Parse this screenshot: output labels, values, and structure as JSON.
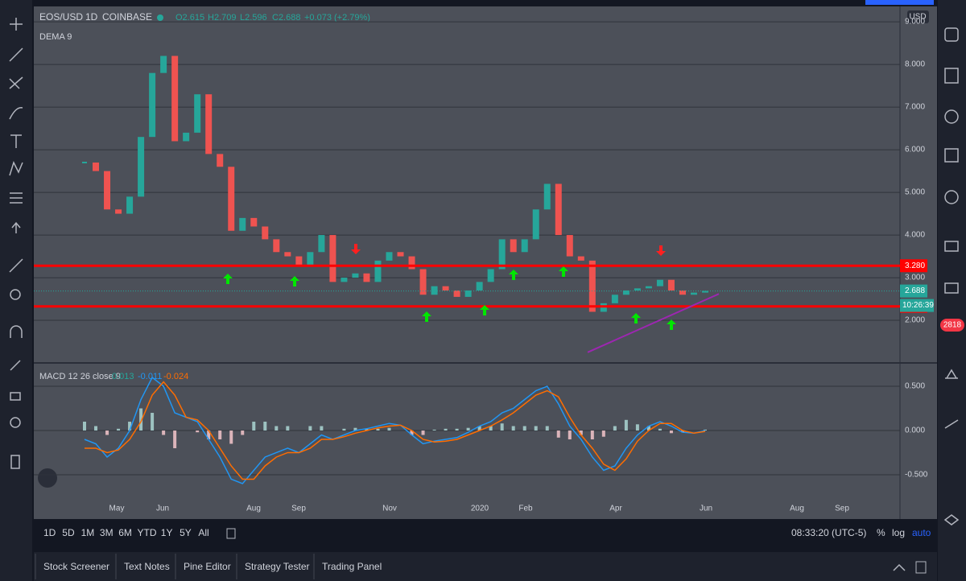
{
  "header": {
    "symbol": "EOS/USD",
    "interval": "1D",
    "exchange": "COINBASE",
    "ohlc": [
      "O2.615",
      "H2.709",
      "L2.596",
      "C2.688"
    ],
    "change": "+0.073 (+2.79%)",
    "indicator": "DEMA 9",
    "currency": "USD",
    "badge": "2818"
  },
  "chart_data": [
    {
      "type": "candlestick",
      "color_up": "#26a69a",
      "color_down": "#ef5350",
      "x_labels": [
        "May",
        "Jun",
        "Aug",
        "Sep",
        "Nov",
        "2020",
        "Feb",
        "Apr",
        "Jun",
        "Aug",
        "Sep"
      ],
      "values": [
        5.7,
        5.5,
        4.6,
        4.5,
        4.9,
        6.3,
        7.8,
        8.2,
        6.2,
        6.4,
        7.3,
        5.9,
        5.6,
        4.1,
        4.4,
        4.2,
        3.9,
        3.6,
        3.5,
        3.3,
        3.6,
        4.0,
        2.9,
        3.0,
        3.1,
        2.9,
        3.4,
        3.6,
        3.5,
        3.2,
        2.6,
        2.8,
        2.7,
        2.55,
        2.7,
        2.9,
        3.2,
        3.9,
        3.6,
        3.9,
        4.6,
        5.2,
        4.0,
        3.5,
        3.4,
        2.2,
        2.4,
        2.6,
        2.7,
        2.75,
        2.8,
        2.95,
        2.7,
        2.6,
        2.65,
        2.69
      ],
      "ylim": [
        1.02,
        9.36
      ],
      "yticks": [
        {
          "value": 9,
          "label": "9.000"
        },
        {
          "value": 8,
          "label": "8.000"
        },
        {
          "value": 7,
          "label": "7.000"
        },
        {
          "value": 6,
          "label": "6.000"
        },
        {
          "value": 5,
          "label": "5.000"
        },
        {
          "value": 4,
          "label": "4.000"
        },
        {
          "value": 3,
          "label": "3.000"
        },
        {
          "value": 2,
          "label": "2.000"
        }
      ],
      "levels": [
        {
          "value": 3.28,
          "label": "3.280"
        },
        {
          "value": 2.327,
          "label": "2.327"
        }
      ],
      "last": {
        "value": 2.688,
        "label": "2.688"
      },
      "countdown": "10:26:39",
      "trendline": [
        1.25,
        2.62
      ],
      "trendline_color": "#9c27b0",
      "level_color": "#ff0000"
    },
    {
      "type": "line",
      "title": "MACD 12 26 close 9",
      "readout": [
        "0.013",
        "-0.011",
        "-0.024"
      ],
      "series": [
        {
          "name": "MACD",
          "color": "#2196f3",
          "values": [
            -0.1,
            -0.15,
            -0.3,
            -0.2,
            0.0,
            0.35,
            0.6,
            0.5,
            0.2,
            0.15,
            0.1,
            -0.1,
            -0.3,
            -0.55,
            -0.6,
            -0.45,
            -0.3,
            -0.25,
            -0.2,
            -0.25,
            -0.15,
            -0.05,
            -0.1,
            -0.05,
            0.0,
            0.02,
            0.05,
            0.08,
            0.06,
            -0.05,
            -0.15,
            -0.12,
            -0.1,
            -0.08,
            -0.02,
            0.05,
            0.1,
            0.2,
            0.25,
            0.35,
            0.45,
            0.5,
            0.3,
            0.05,
            -0.1,
            -0.3,
            -0.45,
            -0.4,
            -0.2,
            -0.05,
            0.05,
            0.1,
            0.05,
            -0.02,
            -0.03,
            0.0
          ]
        },
        {
          "name": "Signal",
          "color": "#ff6d00",
          "values": [
            -0.2,
            -0.2,
            -0.25,
            -0.22,
            -0.1,
            0.1,
            0.4,
            0.55,
            0.4,
            0.15,
            0.12,
            0.0,
            -0.2,
            -0.4,
            -0.55,
            -0.55,
            -0.4,
            -0.3,
            -0.25,
            -0.25,
            -0.2,
            -0.1,
            -0.1,
            -0.07,
            -0.03,
            0.0,
            0.03,
            0.05,
            0.06,
            0.0,
            -0.1,
            -0.13,
            -0.12,
            -0.1,
            -0.05,
            0.0,
            0.05,
            0.12,
            0.2,
            0.3,
            0.4,
            0.45,
            0.38,
            0.15,
            -0.05,
            -0.2,
            -0.38,
            -0.45,
            -0.32,
            -0.12,
            0.0,
            0.08,
            0.08,
            0.0,
            -0.03,
            -0.01
          ]
        }
      ],
      "ylim": [
        -0.755,
        0.755
      ],
      "yticks": [
        {
          "value": 0.5,
          "label": "0.500"
        },
        {
          "value": 0,
          "label": "0.000"
        },
        {
          "value": -0.5,
          "label": "-0.500"
        }
      ]
    }
  ],
  "range_bar": {
    "ranges": [
      "1D",
      "5D",
      "1M",
      "3M",
      "6M",
      "YTD",
      "1Y",
      "5Y",
      "All"
    ],
    "clock": "08:33:20 (UTC-5)",
    "options": [
      "%",
      "log",
      "auto"
    ]
  },
  "tabs": [
    "Stock Screener",
    "Text Notes",
    "Pine Editor",
    "Strategy Tester",
    "Trading Panel"
  ]
}
